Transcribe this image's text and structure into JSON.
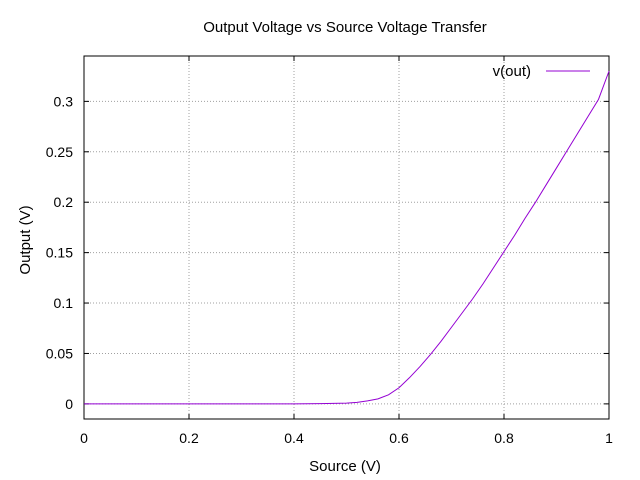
{
  "chart_data": {
    "type": "line",
    "title": "Output Voltage vs Source Voltage Transfer",
    "xlabel": "Source (V)",
    "ylabel": "Output (V)",
    "xlim": [
      0,
      1
    ],
    "ylim": [
      -0.015,
      0.345
    ],
    "xticks": [
      0,
      0.2,
      0.4,
      0.6,
      0.8,
      1
    ],
    "xtick_labels": [
      "0",
      "0.2",
      "0.4",
      "0.6",
      "0.8",
      "1"
    ],
    "yticks": [
      0,
      0.05,
      0.1,
      0.15,
      0.2,
      0.25,
      0.3
    ],
    "ytick_labels": [
      "0",
      "0.05",
      "0.1",
      "0.15",
      "0.2",
      "0.25",
      "0.3"
    ],
    "grid": true,
    "legend_position": "top-right",
    "series": [
      {
        "name": "v(out)",
        "color": "#9400d3",
        "x": [
          0,
          0.1,
          0.2,
          0.3,
          0.4,
          0.45,
          0.5,
          0.52,
          0.54,
          0.56,
          0.58,
          0.6,
          0.62,
          0.64,
          0.66,
          0.68,
          0.7,
          0.72,
          0.74,
          0.76,
          0.78,
          0.8,
          0.82,
          0.84,
          0.86,
          0.88,
          0.9,
          0.92,
          0.94,
          0.96,
          0.98,
          1.0
        ],
        "y": [
          0,
          0,
          0,
          0,
          0,
          0.0003,
          0.0008,
          0.0015,
          0.003,
          0.005,
          0.009,
          0.016,
          0.026,
          0.037,
          0.049,
          0.062,
          0.076,
          0.09,
          0.104,
          0.119,
          0.135,
          0.151,
          0.167,
          0.184,
          0.2,
          0.217,
          0.234,
          0.251,
          0.268,
          0.285,
          0.302,
          0.33
        ]
      }
    ]
  }
}
